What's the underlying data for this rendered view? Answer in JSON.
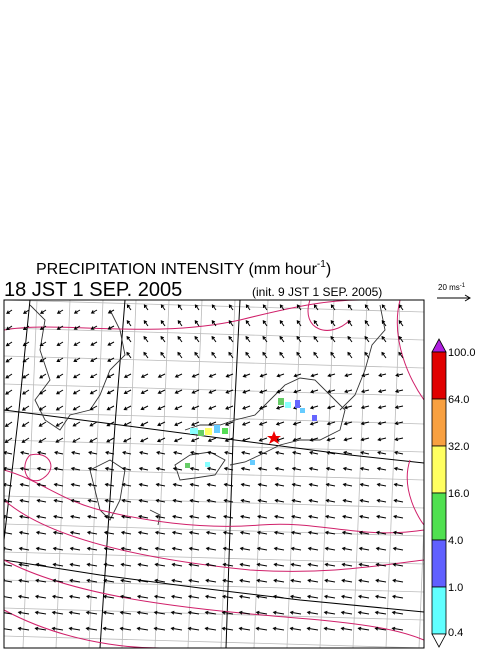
{
  "header": {
    "title": "PRECIPITATION INTENSITY (mm hour",
    "title_superscript": "-1",
    "title_close": ")",
    "valid_time": "18 JST 1 SEP. 2005",
    "init_time": "(init. 9 JST 1 SEP. 2005)"
  },
  "vector_legend": {
    "label": "20 ms",
    "superscript": "-1"
  },
  "colorbar": {
    "labels": [
      "100.0",
      "64.0",
      "32.0",
      "16.0",
      "4.0",
      "1.0",
      "0.4"
    ]
  }
}
